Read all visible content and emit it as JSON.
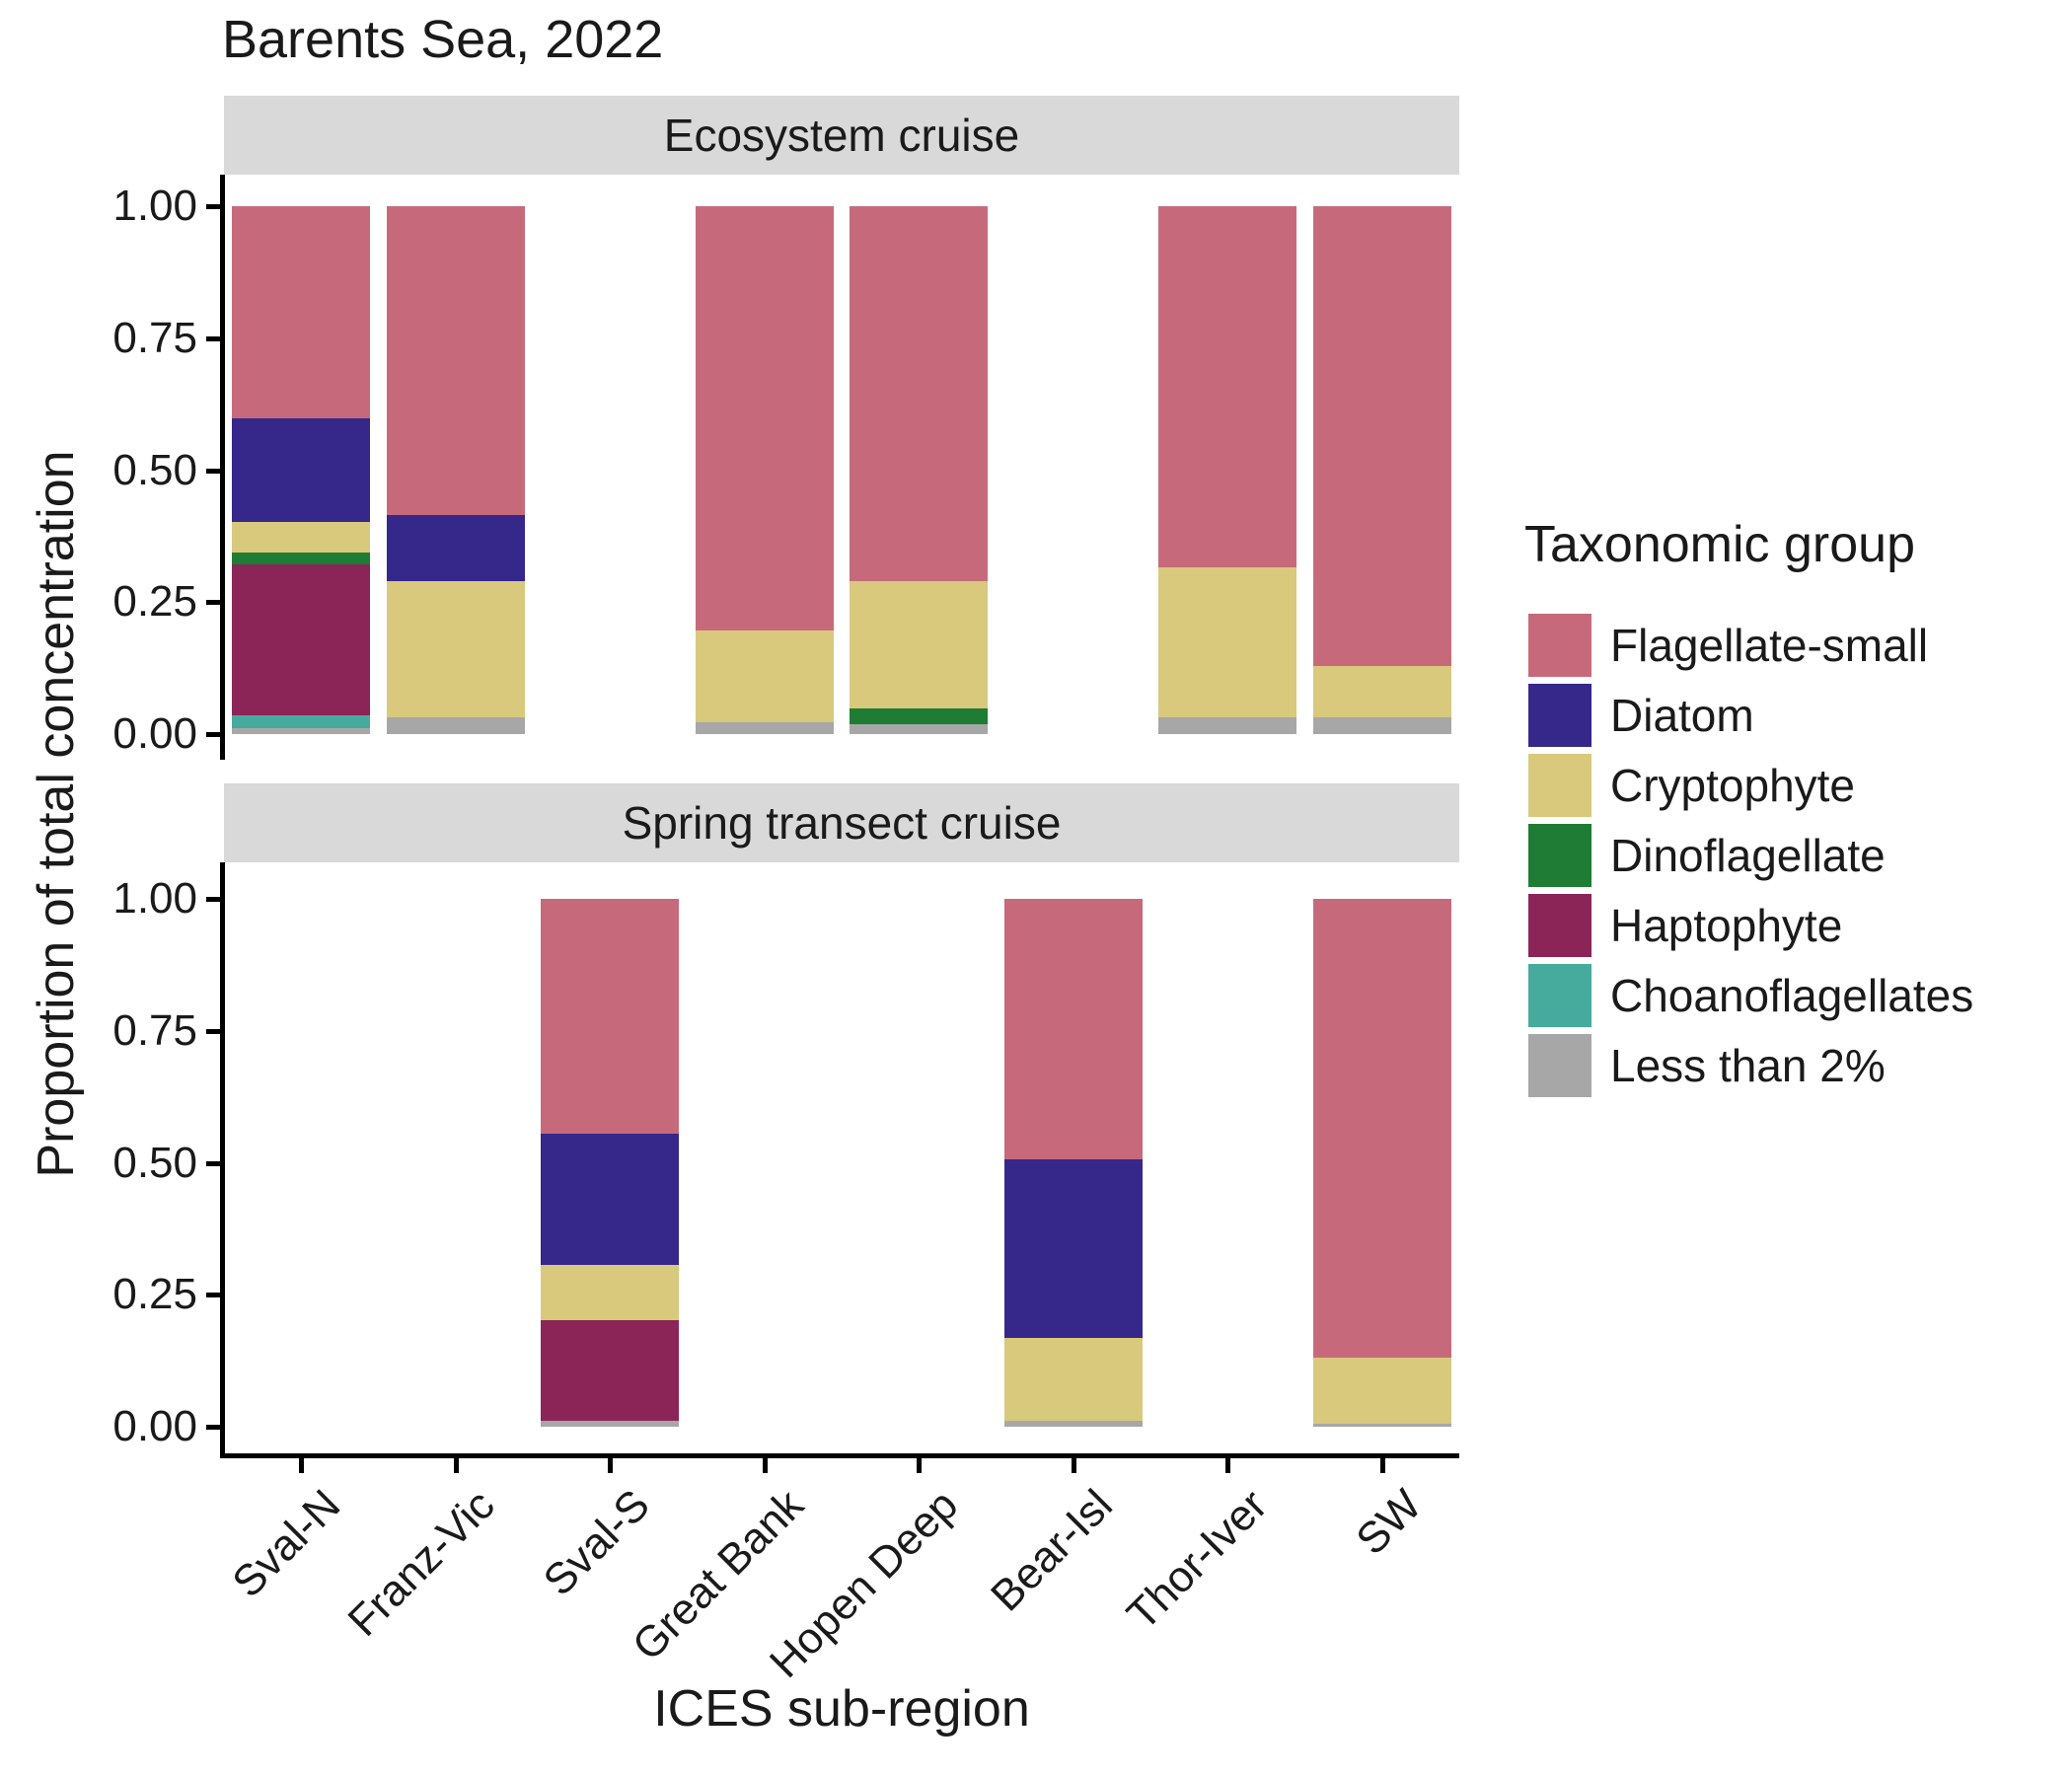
{
  "chart_data": {
    "type": "bar",
    "stacked": true,
    "orientation": "vertical",
    "title": "Barents Sea, 2022",
    "xlabel": "ICES sub-region",
    "ylabel": "Proportion of total concentration",
    "ylim": [
      0,
      1
    ],
    "yticks": [
      0,
      0.25,
      0.5,
      0.75,
      1.0
    ],
    "ytick_labels": [
      "0.00",
      "0.25",
      "0.50",
      "0.75",
      "1.00"
    ],
    "categories": [
      "Sval-N",
      "Franz-Vic",
      "Sval-S",
      "Great Bank",
      "Hopen Deep",
      "Bear-Isl",
      "Thor-Iver",
      "SW"
    ],
    "grid": false,
    "legend_position": "right",
    "legend_title": "Taxonomic group",
    "groups": [
      {
        "name": "Flagellate-small",
        "color": "#C66A7B"
      },
      {
        "name": "Diatom",
        "color": "#36278A"
      },
      {
        "name": "Cryptophyte",
        "color": "#D8C97C"
      },
      {
        "name": "Dinoflagellate",
        "color": "#1E7C34"
      },
      {
        "name": "Haptophyte",
        "color": "#8B2557"
      },
      {
        "name": "Choanoflagellates",
        "color": "#46AB9D"
      },
      {
        "name": "Less than 2%",
        "color": "#A7A7A7"
      }
    ],
    "stack_order_bottom_to_top": [
      "Less than 2%",
      "Choanoflagellates",
      "Haptophyte",
      "Dinoflagellate",
      "Cryptophyte",
      "Diatom",
      "Flagellate-small"
    ],
    "facets": [
      {
        "label": "Ecosystem cruise",
        "bars": [
          {
            "category": "Sval-N",
            "segments": {
              "Less than 2%": 0.011,
              "Choanoflagellates": 0.024,
              "Haptophyte": 0.286,
              "Dinoflagellate": 0.022,
              "Cryptophyte": 0.059,
              "Diatom": 0.196,
              "Flagellate-small": 0.402
            }
          },
          {
            "category": "Franz-Vic",
            "segments": {
              "Less than 2%": 0.031,
              "Cryptophyte": 0.259,
              "Diatom": 0.125,
              "Flagellate-small": 0.585
            }
          },
          {
            "category": "Great Bank",
            "segments": {
              "Less than 2%": 0.023,
              "Cryptophyte": 0.174,
              "Flagellate-small": 0.803
            }
          },
          {
            "category": "Hopen Deep",
            "segments": {
              "Less than 2%": 0.018,
              "Dinoflagellate": 0.031,
              "Cryptophyte": 0.24,
              "Flagellate-small": 0.711
            }
          },
          {
            "category": "Thor-Iver",
            "segments": {
              "Less than 2%": 0.031,
              "Cryptophyte": 0.284,
              "Flagellate-small": 0.685
            }
          },
          {
            "category": "SW",
            "segments": {
              "Less than 2%": 0.031,
              "Cryptophyte": 0.098,
              "Flagellate-small": 0.871
            }
          }
        ]
      },
      {
        "label": "Spring transect cruise",
        "bars": [
          {
            "category": "Sval-S",
            "segments": {
              "Less than 2%": 0.011,
              "Haptophyte": 0.191,
              "Cryptophyte": 0.104,
              "Diatom": 0.25,
              "Flagellate-small": 0.444
            }
          },
          {
            "category": "Bear-Isl",
            "segments": {
              "Less than 2%": 0.011,
              "Cryptophyte": 0.157,
              "Diatom": 0.339,
              "Flagellate-small": 0.493
            }
          },
          {
            "category": "SW",
            "segments": {
              "Less than 2%": 0.005,
              "Cryptophyte": 0.125,
              "Flagellate-small": 0.87
            }
          }
        ]
      }
    ],
    "theme": {
      "strip_background": "#D9D9D9",
      "axis_color": "#000000",
      "text_color": "#1A1A1A",
      "panel_background": "#FFFFFF"
    }
  }
}
